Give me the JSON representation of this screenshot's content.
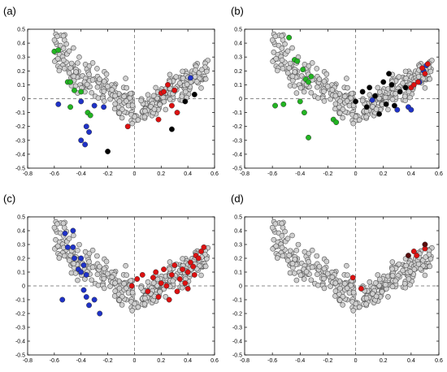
{
  "chart_data": [
    {
      "type": "scatter",
      "label": "(a)",
      "xlim": [
        -0.8,
        0.6
      ],
      "ylim": [
        -0.5,
        0.5
      ],
      "xticks": [
        "-0.8",
        "-0.6",
        "-0.4",
        "-0.2",
        "0",
        "0.2",
        "0.4",
        "0.6"
      ],
      "yticks": [
        "-0.5",
        "-0.4",
        "-0.3",
        "-0.2",
        "-0.1",
        "0",
        "0.1",
        "0.2",
        "0.3",
        "0.4",
        "0.5"
      ],
      "grid": false,
      "reference_lines": {
        "x": 0,
        "y": 0,
        "style": "dashed"
      },
      "colors": {
        "base": "#cfcfcf",
        "green": "#22b522",
        "blue": "#1f32c8",
        "red": "#dd1111",
        "black": "#000000"
      },
      "series": [
        {
          "color_key": "green",
          "points": [
            [
              -0.6,
              0.34
            ],
            [
              -0.57,
              0.35
            ],
            [
              -0.5,
              0.12
            ],
            [
              -0.48,
              0.12
            ],
            [
              -0.45,
              0.06
            ],
            [
              -0.4,
              0.05
            ],
            [
              -0.48,
              -0.06
            ],
            [
              -0.35,
              -0.1
            ],
            [
              -0.33,
              -0.12
            ]
          ]
        },
        {
          "color_key": "blue",
          "points": [
            [
              -0.57,
              -0.04
            ],
            [
              -0.4,
              -0.02
            ],
            [
              -0.3,
              -0.05
            ],
            [
              -0.36,
              -0.2
            ],
            [
              -0.34,
              -0.24
            ],
            [
              -0.4,
              -0.3
            ],
            [
              -0.37,
              -0.33
            ],
            [
              -0.23,
              -0.06
            ],
            [
              0.42,
              0.15
            ]
          ]
        },
        {
          "color_key": "red",
          "points": [
            [
              -0.05,
              -0.2
            ],
            [
              0.18,
              -0.15
            ],
            [
              0.2,
              0.04
            ],
            [
              0.22,
              0.05
            ],
            [
              0.3,
              0.06
            ],
            [
              0.32,
              -0.1
            ],
            [
              0.28,
              -0.05
            ],
            [
              0.25,
              0.1
            ]
          ]
        },
        {
          "color_key": "black",
          "points": [
            [
              -0.2,
              -0.38
            ],
            [
              0.38,
              -0.02
            ],
            [
              0.45,
              0.03
            ],
            [
              0.28,
              -0.22
            ]
          ]
        }
      ]
    },
    {
      "type": "scatter",
      "label": "(b)",
      "xlim": [
        -0.8,
        0.6
      ],
      "ylim": [
        -0.5,
        0.5
      ],
      "xticks": [
        "-0.8",
        "-0.6",
        "-0.4",
        "-0.2",
        "0",
        "0.2",
        "0.4",
        "0.6"
      ],
      "yticks": [
        "-0.5",
        "-0.4",
        "-0.3",
        "-0.2",
        "-0.1",
        "0",
        "0.1",
        "0.2",
        "0.3",
        "0.4",
        "0.5"
      ],
      "grid": false,
      "reference_lines": {
        "x": 0,
        "y": 0,
        "style": "dashed"
      },
      "colors": {
        "base": "#cfcfcf",
        "green": "#22b522",
        "blue": "#1f32c8",
        "red": "#dd1111",
        "black": "#000000"
      },
      "series": [
        {
          "color_key": "green",
          "points": [
            [
              -0.48,
              0.44
            ],
            [
              -0.44,
              0.28
            ],
            [
              -0.42,
              0.27
            ],
            [
              -0.38,
              0.21
            ],
            [
              -0.36,
              0.14
            ],
            [
              -0.34,
              0.12
            ],
            [
              -0.32,
              0.16
            ],
            [
              -0.58,
              -0.05
            ],
            [
              -0.52,
              -0.04
            ],
            [
              -0.4,
              -0.02
            ],
            [
              -0.37,
              -0.1
            ],
            [
              -0.34,
              -0.28
            ],
            [
              -0.16,
              -0.15
            ],
            [
              -0.14,
              -0.17
            ]
          ]
        },
        {
          "color_key": "blue",
          "points": [
            [
              0.12,
              -0.01
            ],
            [
              0.3,
              -0.08
            ],
            [
              0.38,
              -0.06
            ],
            [
              0.4,
              -0.08
            ],
            [
              0.46,
              0.12
            ],
            [
              0.49,
              0.2
            ],
            [
              0.51,
              0.24
            ]
          ]
        },
        {
          "color_key": "red",
          "points": [
            [
              0.4,
              0.08
            ],
            [
              0.42,
              0.1
            ],
            [
              0.45,
              0.12
            ],
            [
              0.48,
              0.22
            ],
            [
              0.5,
              0.18
            ],
            [
              0.52,
              0.25
            ]
          ]
        },
        {
          "color_key": "black",
          "points": [
            [
              0.0,
              -0.02
            ],
            [
              0.05,
              0.05
            ],
            [
              0.08,
              -0.06
            ],
            [
              0.1,
              0.08
            ],
            [
              0.14,
              0.02
            ],
            [
              0.2,
              0.12
            ],
            [
              0.24,
              0.18
            ],
            [
              0.26,
              0.1
            ],
            [
              0.22,
              -0.04
            ],
            [
              0.17,
              -0.11
            ],
            [
              0.28,
              -0.05
            ],
            [
              0.32,
              0.05
            ],
            [
              0.36,
              0.08
            ]
          ]
        }
      ]
    },
    {
      "type": "scatter",
      "label": "(c)",
      "xlim": [
        -0.8,
        0.6
      ],
      "ylim": [
        -0.5,
        0.5
      ],
      "xticks": [
        "-0.8",
        "-0.6",
        "-0.4",
        "-0.2",
        "0",
        "0.2",
        "0.4",
        "0.6"
      ],
      "yticks": [
        "-0.5",
        "-0.4",
        "-0.3",
        "-0.2",
        "-0.1",
        "0",
        "0.1",
        "0.2",
        "0.3",
        "0.4",
        "0.5"
      ],
      "grid": false,
      "reference_lines": {
        "x": 0,
        "y": 0,
        "style": "dashed"
      },
      "colors": {
        "base": "#cfcfcf",
        "green": "#22b522",
        "blue": "#1f32c8",
        "red": "#dd1111",
        "black": "#000000"
      },
      "series": [
        {
          "color_key": "blue",
          "points": [
            [
              -0.52,
              0.38
            ],
            [
              -0.46,
              0.4
            ],
            [
              -0.5,
              0.28
            ],
            [
              -0.46,
              0.28
            ],
            [
              -0.45,
              0.2
            ],
            [
              -0.42,
              0.12
            ],
            [
              -0.4,
              0.2
            ],
            [
              -0.38,
              0.15
            ],
            [
              -0.4,
              0.1
            ],
            [
              -0.36,
              0.08
            ],
            [
              -0.38,
              -0.03
            ],
            [
              -0.36,
              -0.08
            ],
            [
              -0.54,
              -0.1
            ],
            [
              -0.34,
              -0.14
            ],
            [
              -0.3,
              -0.1
            ],
            [
              -0.26,
              -0.2
            ]
          ]
        },
        {
          "color_key": "red",
          "points": [
            [
              -0.02,
              0.0
            ],
            [
              0.02,
              0.05
            ],
            [
              0.06,
              0.08
            ],
            [
              0.1,
              -0.04
            ],
            [
              0.14,
              0.06
            ],
            [
              0.16,
              0.1
            ],
            [
              0.18,
              -0.08
            ],
            [
              0.2,
              0.02
            ],
            [
              0.22,
              0.12
            ],
            [
              0.24,
              0.0
            ],
            [
              0.26,
              -0.1
            ],
            [
              0.28,
              0.08
            ],
            [
              0.3,
              0.15
            ],
            [
              0.32,
              -0.04
            ],
            [
              0.34,
              0.05
            ],
            [
              0.36,
              0.12
            ],
            [
              0.38,
              0.02
            ],
            [
              0.4,
              0.1
            ],
            [
              0.42,
              0.17
            ],
            [
              0.44,
              0.14
            ],
            [
              0.46,
              0.22
            ],
            [
              0.48,
              0.2
            ],
            [
              0.5,
              0.25
            ],
            [
              0.52,
              0.28
            ],
            [
              0.45,
              0.08
            ],
            [
              0.4,
              -0.02
            ]
          ]
        }
      ]
    },
    {
      "type": "scatter",
      "label": "(d)",
      "xlim": [
        -0.8,
        0.6
      ],
      "ylim": [
        -0.5,
        0.5
      ],
      "xticks": [
        "-0.8",
        "-0.6",
        "-0.4",
        "-0.2",
        "0",
        "0.2",
        "0.4",
        "0.6"
      ],
      "yticks": [
        "-0.5",
        "-0.4",
        "-0.3",
        "-0.2",
        "-0.1",
        "0",
        "0.1",
        "0.2",
        "0.3",
        "0.4",
        "0.5"
      ],
      "grid": false,
      "reference_lines": {
        "x": 0,
        "y": 0,
        "style": "dashed"
      },
      "colors": {
        "base": "#cfcfcf",
        "green": "#22b522",
        "blue": "#1f32c8",
        "red": "#dd1111",
        "black": "#000000",
        "darkred": "#5a0c0c"
      },
      "series": [
        {
          "color_key": "red",
          "points": [
            [
              -0.02,
              0.06
            ],
            [
              0.04,
              -0.02
            ],
            [
              0.42,
              0.25
            ],
            [
              0.44,
              0.22
            ],
            [
              0.5,
              0.27
            ]
          ]
        },
        {
          "color_key": "darkred",
          "points": [
            [
              0.38,
              0.22
            ],
            [
              0.5,
              0.3
            ]
          ]
        }
      ]
    }
  ]
}
